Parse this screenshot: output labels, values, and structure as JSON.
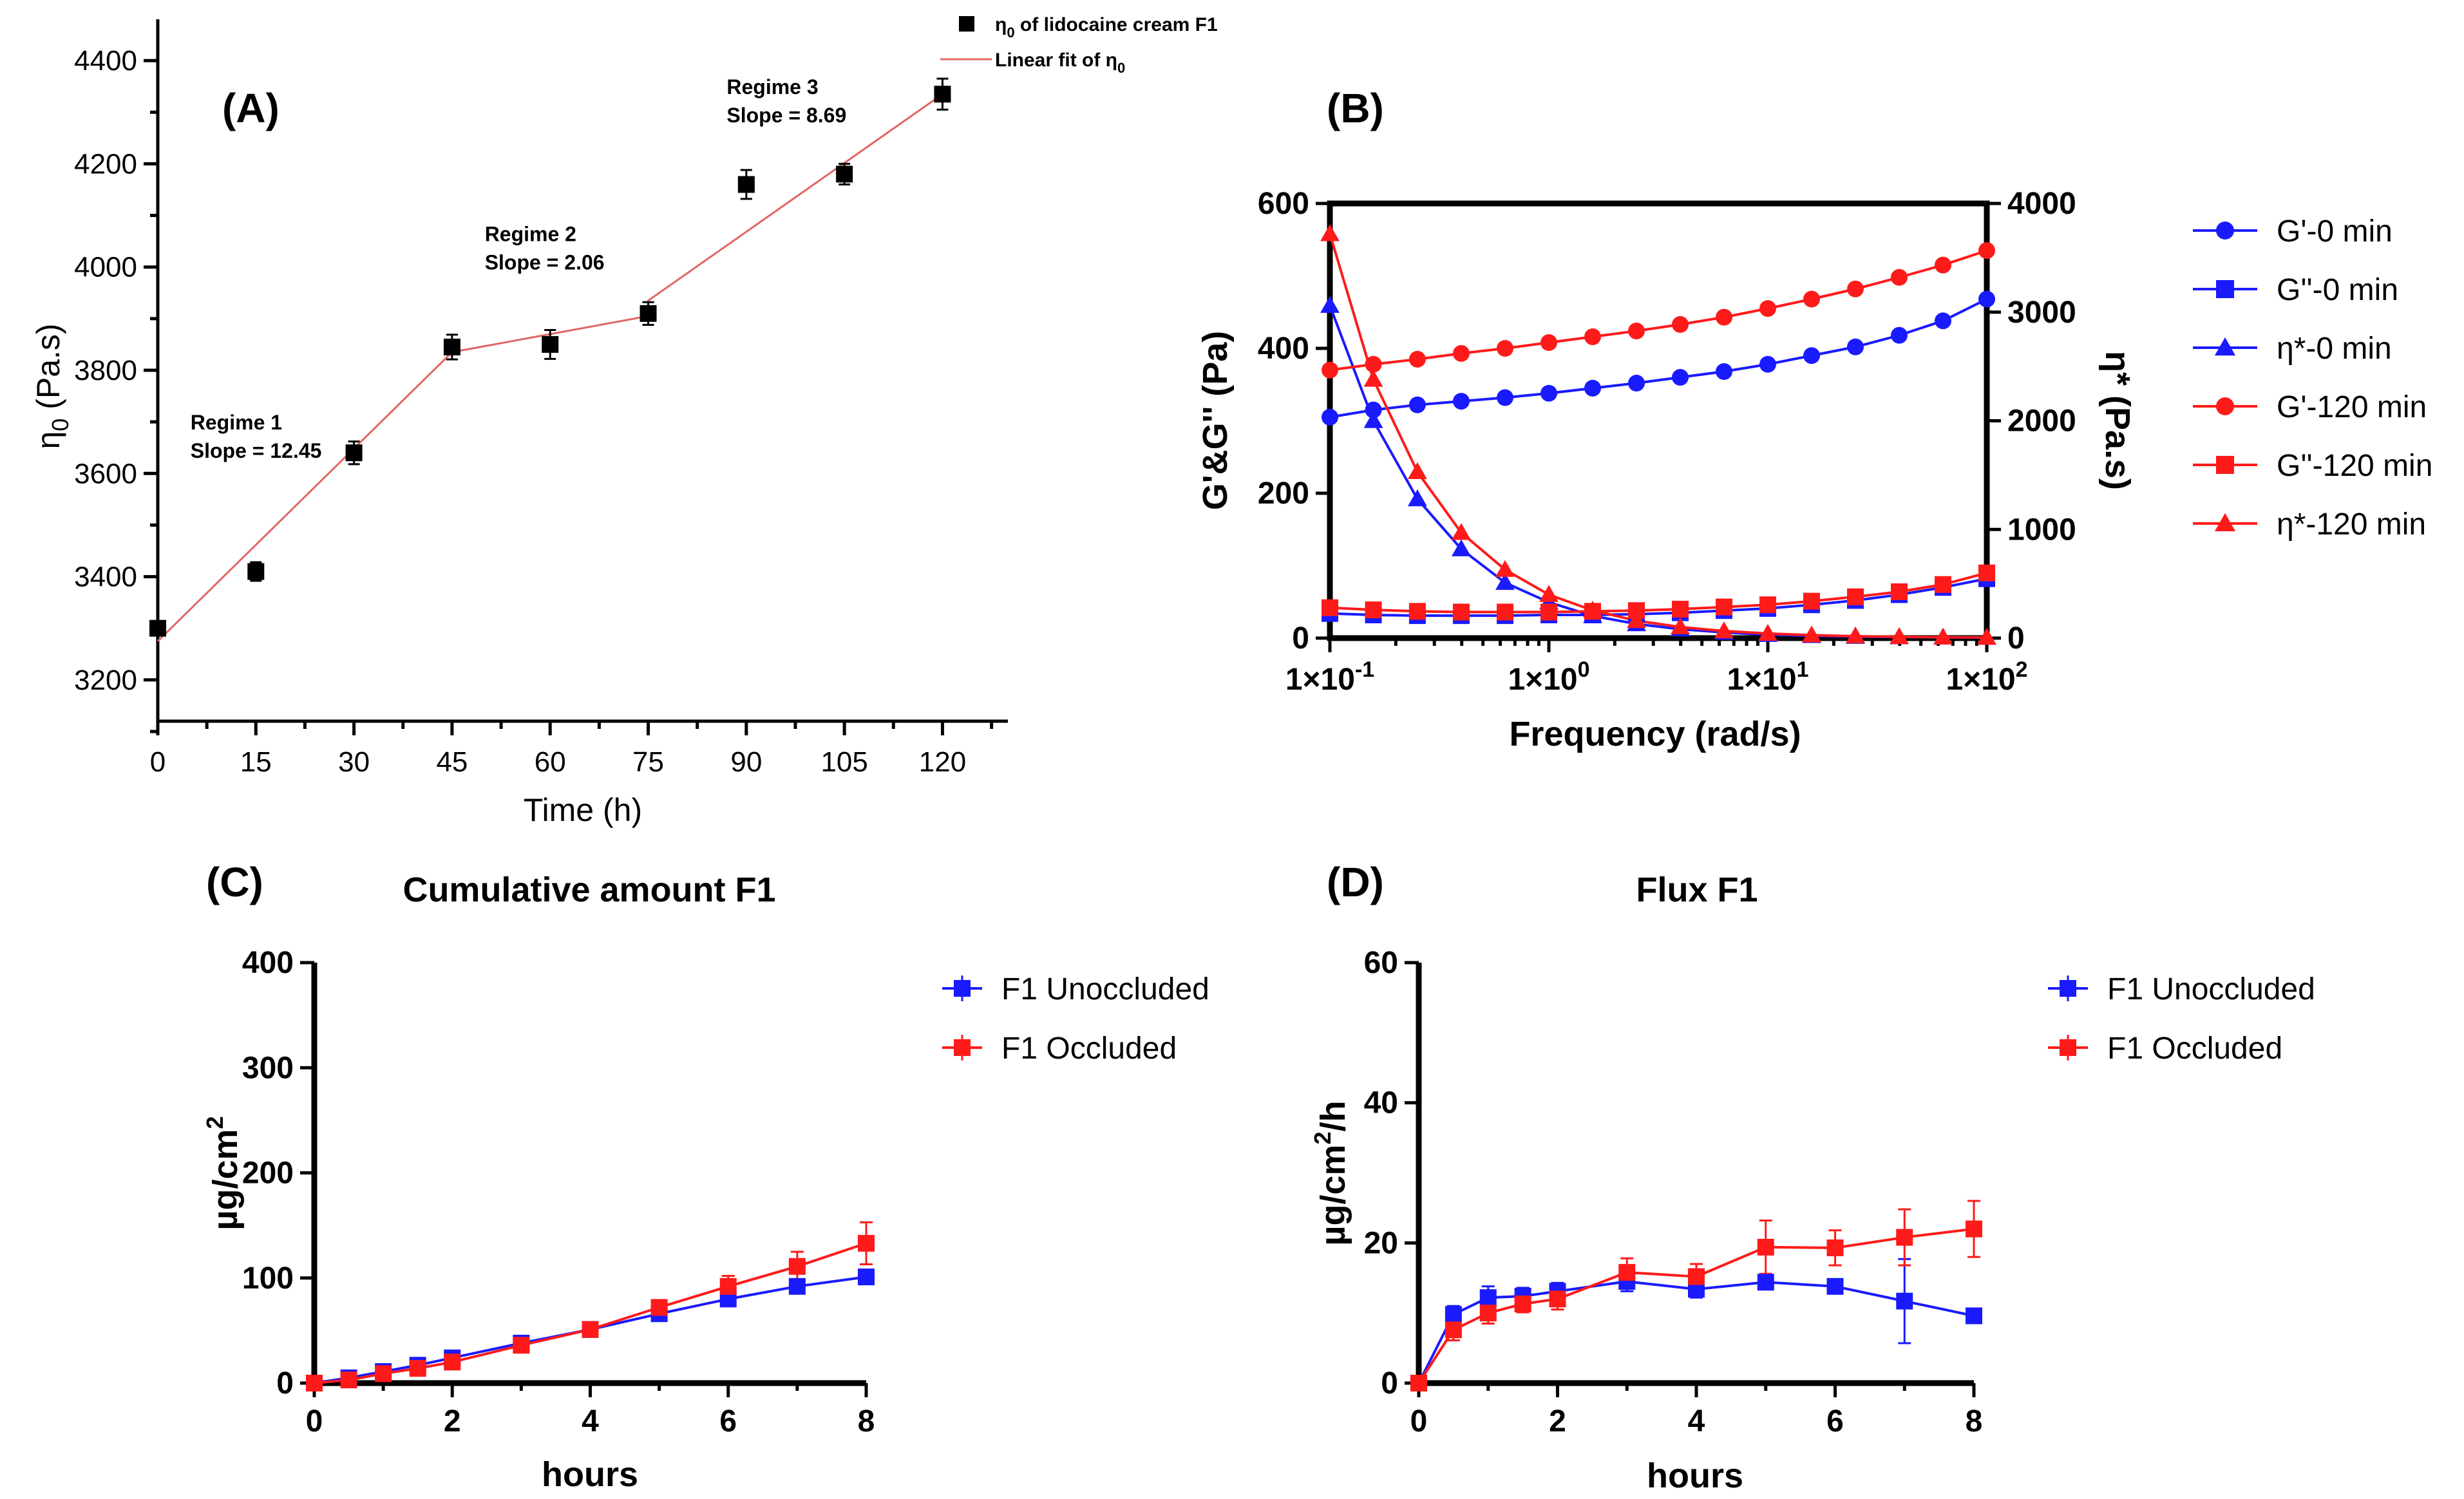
{
  "chart_data": [
    {
      "id": "A",
      "panel_label": "(A)",
      "type": "scatter",
      "title": "",
      "xlabel": "Time (h)",
      "ylabel_main": "η",
      "ylabel_sub": "0",
      "ylabel_rest": " (Pa.s)",
      "xlim": [
        0,
        130
      ],
      "ylim": [
        3120,
        4480
      ],
      "xticks": [
        0,
        15,
        30,
        45,
        60,
        75,
        90,
        105,
        120
      ],
      "yticks": [
        3200,
        3400,
        3600,
        3800,
        4000,
        4200,
        4400
      ],
      "series": [
        {
          "name": "η0 of lidocaine cream F1",
          "legend_main": "η",
          "legend_sub": "0",
          "legend_rest": " of lidocaine cream F1",
          "color": "#000000",
          "marker": "square",
          "x": [
            0,
            15,
            30,
            45,
            60,
            75,
            90,
            105,
            120
          ],
          "y": [
            3300,
            3410,
            3640,
            3845,
            3850,
            3910,
            4160,
            4180,
            4335
          ],
          "err": [
            12,
            18,
            22,
            24,
            28,
            22,
            28,
            20,
            30
          ]
        },
        {
          "name": "Linear fit of η0",
          "legend_main": "Linear fit of η",
          "legend_sub": "0",
          "legend_rest": "",
          "color": "#e06666",
          "line": true,
          "x": [
            0,
            45,
            45,
            75,
            75,
            120
          ],
          "y": [
            3275,
            3835,
            3835,
            3905,
            3935,
            4335
          ]
        }
      ],
      "annotations": [
        {
          "line1": "Regime 1",
          "line2": "Slope = 12.45",
          "x": 5,
          "y": 3685
        },
        {
          "line1": "Regime 2",
          "line2": "Slope = 2.06",
          "x": 50,
          "y": 4050
        },
        {
          "line1": "Regime 3",
          "line2": "Slope = 8.69",
          "x": 87,
          "y": 4335
        }
      ]
    },
    {
      "id": "B",
      "panel_label": "(B)",
      "type": "line",
      "title": "",
      "xlabel": "Frequency (rad/s)",
      "ylabel_left": "G'&G'' (Pa)",
      "ylabel_right": "η* (Pa.s)",
      "xscale": "log",
      "xlim": [
        0.1,
        100
      ],
      "ylim_left": [
        0,
        600
      ],
      "ylim_right": [
        0,
        4000
      ],
      "xtick_values": [
        0.1,
        1,
        10,
        100
      ],
      "xtick_labels": [
        "1×10",
        "1×10",
        "1×10",
        "1×10"
      ],
      "xtick_exps": [
        "-1",
        "0",
        "1",
        "2"
      ],
      "yticks_left": [
        0,
        200,
        400,
        600
      ],
      "yticks_right": [
        0,
        1000,
        2000,
        3000,
        4000
      ],
      "x": [
        0.1,
        0.158,
        0.251,
        0.398,
        0.631,
        1.0,
        1.585,
        2.512,
        3.981,
        6.31,
        10.0,
        15.85,
        25.12,
        39.81,
        63.1,
        100.0
      ],
      "series": [
        {
          "name": "G'-0 min",
          "color": "#1a1aff",
          "marker": "circle",
          "axis": "left",
          "values": [
            305,
            315,
            322,
            327,
            332,
            338,
            345,
            352,
            360,
            368,
            378,
            390,
            402,
            418,
            438,
            468
          ]
        },
        {
          "name": "G''-0 min",
          "color": "#1a1aff",
          "marker": "square",
          "axis": "left",
          "values": [
            34,
            32,
            31,
            31,
            31,
            32,
            32,
            33,
            35,
            38,
            41,
            46,
            52,
            60,
            70,
            82
          ]
        },
        {
          "name": "η*-0 min",
          "color": "#1a1aff",
          "marker": "triangle",
          "axis": "right",
          "values": [
            3060,
            2000,
            1280,
            820,
            510,
            330,
            205,
            130,
            82,
            52,
            32,
            21,
            14,
            10,
            7,
            5
          ]
        },
        {
          "name": "G'-120 min",
          "color": "#ff1a1a",
          "marker": "circle",
          "axis": "left",
          "values": [
            370,
            378,
            385,
            393,
            400,
            408,
            416,
            424,
            433,
            443,
            455,
            468,
            482,
            498,
            515,
            535
          ]
        },
        {
          "name": "G''-120 min",
          "color": "#ff1a1a",
          "marker": "square",
          "axis": "left",
          "values": [
            42,
            39,
            37,
            36,
            36,
            36,
            37,
            38,
            40,
            43,
            46,
            51,
            57,
            64,
            74,
            90
          ]
        },
        {
          "name": "η*-120 min",
          "color": "#ff1a1a",
          "marker": "triangle",
          "axis": "right",
          "values": [
            3720,
            2380,
            1530,
            970,
            630,
            400,
            255,
            160,
            102,
            65,
            42,
            27,
            18,
            12,
            8,
            6
          ]
        }
      ],
      "legend": "right"
    },
    {
      "id": "C",
      "panel_label": "(C)",
      "type": "line",
      "title": "Cumulative amount F1",
      "xlabel": "hours",
      "ylabel_main": "µg/cm",
      "ylabel_sup": "2",
      "ylabel_rest": "",
      "xlim": [
        0,
        8
      ],
      "ylim": [
        0,
        400
      ],
      "xticks": [
        0,
        2,
        4,
        6,
        8
      ],
      "yticks": [
        0,
        100,
        200,
        300,
        400
      ],
      "x": [
        0,
        0.5,
        1,
        1.5,
        2,
        3,
        4,
        5,
        6,
        7,
        8
      ],
      "series": [
        {
          "name": "F1 Unoccluded",
          "color": "#1a1aff",
          "marker": "square",
          "values": [
            0,
            5,
            11,
            17,
            24,
            38,
            51,
            66,
            80,
            92,
            101
          ],
          "err": [
            0,
            1,
            2,
            2,
            3,
            3,
            3,
            4,
            5,
            6,
            7
          ]
        },
        {
          "name": "F1 Occluded",
          "color": "#ff1a1a",
          "marker": "square",
          "values": [
            0,
            3,
            9,
            14,
            20,
            36,
            51,
            72,
            92,
            111,
            133
          ],
          "err": [
            0,
            1,
            2,
            2,
            3,
            3,
            4,
            5,
            10,
            14,
            20
          ]
        }
      ],
      "legend": "top-right"
    },
    {
      "id": "D",
      "panel_label": "(D)",
      "type": "line",
      "title": "Flux F1",
      "xlabel": "hours",
      "ylabel_main": "µg/cm",
      "ylabel_sup": "2",
      "ylabel_rest": "/h",
      "xlim": [
        0,
        8
      ],
      "ylim": [
        0,
        60
      ],
      "xticks": [
        0,
        2,
        4,
        6,
        8
      ],
      "yticks": [
        0,
        20,
        40,
        60
      ],
      "x": [
        0,
        0.5,
        1,
        1.5,
        2,
        3,
        4,
        5,
        6,
        7,
        8
      ],
      "series": [
        {
          "name": "F1 Unoccluded",
          "color": "#1a1aff",
          "marker": "square",
          "values": [
            0,
            9.8,
            12.2,
            12.4,
            13.1,
            14.5,
            13.4,
            14.4,
            13.8,
            11.7,
            9.6
          ],
          "err": [
            0,
            1.2,
            1.6,
            1.2,
            1.2,
            1.4,
            1.2,
            1.0,
            1.0,
            6.0,
            1.0
          ]
        },
        {
          "name": "F1 Occluded",
          "color": "#ff1a1a",
          "marker": "square",
          "values": [
            0,
            7.6,
            10.0,
            11.3,
            12.0,
            15.8,
            15.2,
            19.4,
            19.3,
            20.8,
            22.0
          ],
          "err": [
            0,
            1.5,
            1.5,
            1.2,
            1.5,
            2.0,
            1.8,
            3.8,
            2.5,
            4.0,
            4.0
          ]
        }
      ],
      "legend": "top-right"
    }
  ]
}
